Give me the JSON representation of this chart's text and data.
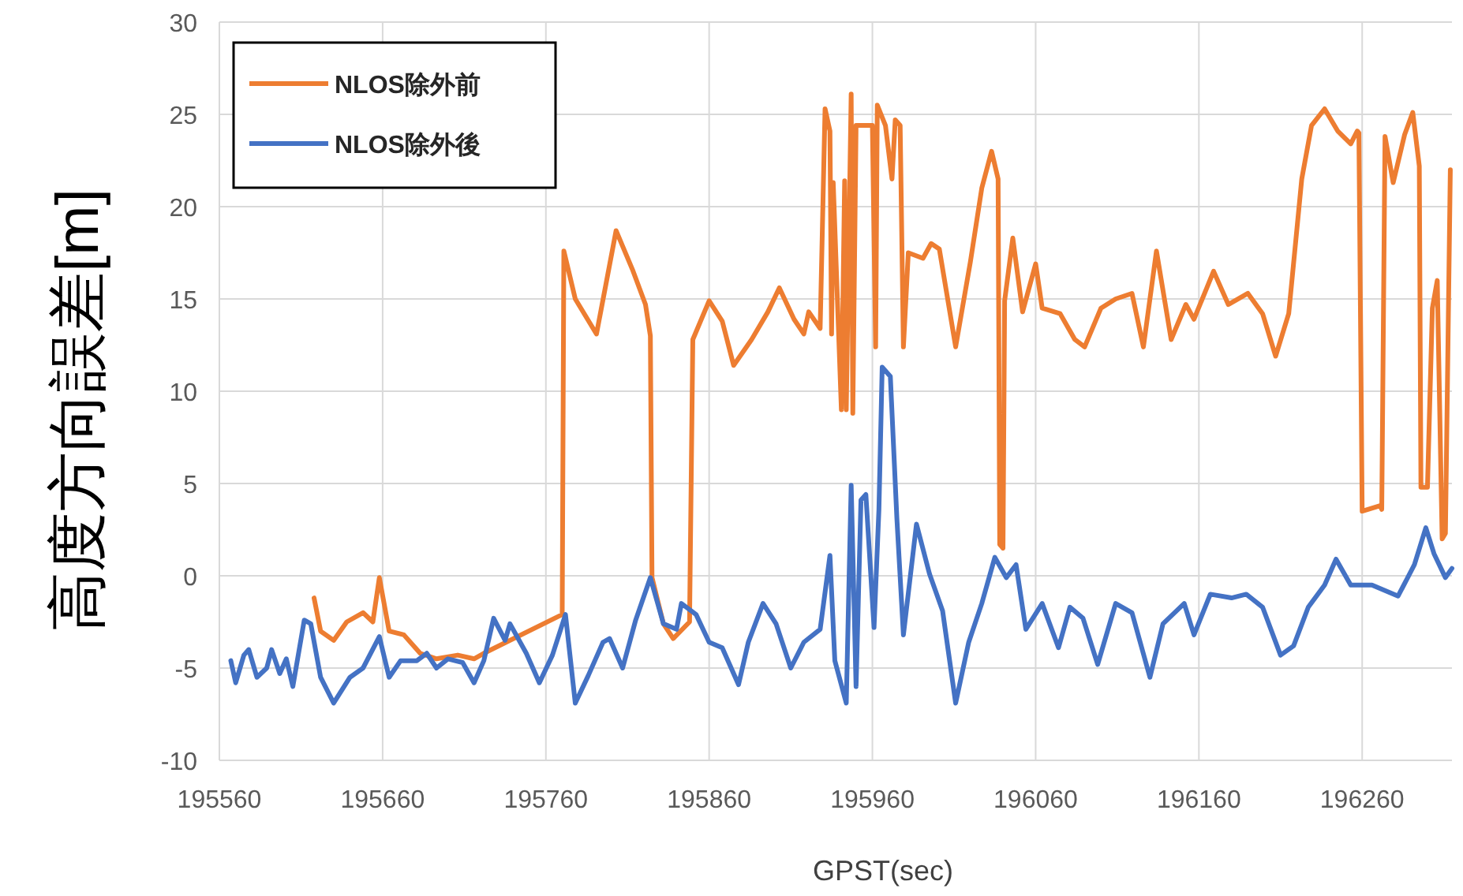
{
  "chart_data": {
    "type": "line",
    "xlabel": "GPST(sec)",
    "ylabel": "高度方向誤差[m]",
    "xlim": [
      195560,
      196315
    ],
    "ylim": [
      -10,
      30
    ],
    "xticks": [
      195560,
      195660,
      195760,
      195860,
      195960,
      196060,
      196160,
      196260
    ],
    "yticks": [
      -10,
      -5,
      0,
      5,
      10,
      15,
      20,
      25,
      30
    ],
    "grid": true,
    "legend": "top left",
    "line_style": "solid",
    "marker": "none",
    "series": [
      {
        "name": "NLOS除外前",
        "color": "#ed7d31",
        "x": [
          195618,
          195622,
          195630,
          195638,
          195648,
          195654,
          195658,
          195664,
          195673,
          195683,
          195693,
          195706,
          195716,
          195722,
          195770,
          195771,
          195778,
          195791,
          195803,
          195813,
          195821,
          195824,
          195825,
          195832,
          195838,
          195848,
          195850,
          195860,
          195868,
          195875,
          195886,
          195896,
          195903,
          195912,
          195918,
          195921,
          195928,
          195931,
          195934,
          195935,
          195936,
          195941,
          195943,
          195944,
          195947,
          195948,
          195950,
          195960,
          195962,
          195963,
          195968,
          195972,
          195974,
          195977,
          195979,
          195982,
          195991,
          195996,
          196001,
          196011,
          196020,
          196027,
          196033,
          196037,
          196038,
          196040,
          196041,
          196046,
          196052,
          196060,
          196064,
          196075,
          196084,
          196090,
          196100,
          196109,
          196119,
          196126,
          196134,
          196143,
          196152,
          196157,
          196169,
          196178,
          196190,
          196199,
          196207,
          196215,
          196223,
          196229,
          196237,
          196245,
          196253,
          196257,
          196258,
          196260,
          196271,
          196272,
          196274,
          196279,
          196286,
          196291,
          196295,
          196296,
          196300,
          196303,
          196306,
          196309,
          196311,
          196314
        ],
        "values": [
          -1.2,
          -3,
          -3.5,
          -2.5,
          -2,
          -2.5,
          -0.1,
          -3,
          -3.2,
          -4.2,
          -4.5,
          -4.3,
          -4.5,
          -4.2,
          -2.1,
          17.6,
          15,
          13.1,
          18.7,
          16.6,
          14.7,
          13,
          -0.1,
          -2.6,
          -3.4,
          -2.5,
          12.8,
          14.9,
          13.8,
          11.4,
          12.8,
          14.3,
          15.6,
          13.9,
          13.1,
          14.3,
          13.4,
          25.3,
          24.1,
          13.1,
          21.3,
          9,
          21.4,
          9,
          26.1,
          8.8,
          24.4,
          24.4,
          12.4,
          25.5,
          24.4,
          21.5,
          24.7,
          24.4,
          12.4,
          17.5,
          17.2,
          18,
          17.7,
          12.4,
          17,
          21,
          23,
          21.5,
          1.7,
          1.5,
          14.9,
          18.3,
          14.3,
          16.9,
          14.5,
          14.2,
          12.8,
          12.4,
          14.5,
          15,
          15.3,
          12.4,
          17.6,
          12.8,
          14.7,
          13.9,
          16.5,
          14.7,
          15.3,
          14.2,
          11.9,
          14.2,
          21.5,
          24.4,
          25.3,
          24.1,
          23.4,
          24.1,
          24,
          3.5,
          3.8,
          3.6,
          23.8,
          21.3,
          23.9,
          25.1,
          22.2,
          4.8,
          4.8,
          14.5,
          16,
          2,
          2.3,
          22
        ]
      },
      {
        "name": "NLOS除外後",
        "color": "#4472c4",
        "x": [
          195567,
          195570,
          195575,
          195578,
          195583,
          195589,
          195592,
          195597,
          195601,
          195605,
          195612,
          195616,
          195622,
          195630,
          195640,
          195648,
          195658,
          195664,
          195671,
          195681,
          195687,
          195693,
          195700,
          195709,
          195716,
          195722,
          195728,
          195735,
          195738,
          195748,
          195756,
          195764,
          195772,
          195778,
          195786,
          195795,
          195799,
          195807,
          195815,
          195824,
          195832,
          195840,
          195843,
          195852,
          195860,
          195868,
          195878,
          195884,
          195893,
          195901,
          195910,
          195918,
          195928,
          195934,
          195937,
          195944,
          195947,
          195950,
          195953,
          195956,
          195961,
          195964,
          195966,
          195971,
          195975,
          195979,
          195987,
          195995,
          196003,
          196011,
          196019,
          196027,
          196035,
          196042,
          196048,
          196054,
          196064,
          196074,
          196081,
          196089,
          196098,
          196109,
          196119,
          196130,
          196138,
          196151,
          196157,
          196167,
          196180,
          196189,
          196199,
          196210,
          196218,
          196227,
          196237,
          196244,
          196253,
          196266,
          196282,
          196292,
          196299,
          196304,
          196311,
          196315
        ],
        "values": [
          -4.6,
          -5.8,
          -4.3,
          -4,
          -5.5,
          -5,
          -4,
          -5.3,
          -4.5,
          -6,
          -2.4,
          -2.6,
          -5.5,
          -6.9,
          -5.5,
          -5,
          -3.3,
          -5.5,
          -4.6,
          -4.6,
          -4.2,
          -5,
          -4.5,
          -4.7,
          -5.8,
          -4.6,
          -2.3,
          -3.5,
          -2.6,
          -4.2,
          -5.8,
          -4.3,
          -2.1,
          -6.9,
          -5.4,
          -3.6,
          -3.4,
          -5,
          -2.4,
          -0.1,
          -2.6,
          -2.9,
          -1.5,
          -2.1,
          -3.6,
          -3.9,
          -5.9,
          -3.6,
          -1.5,
          -2.6,
          -5,
          -3.6,
          -2.9,
          1.1,
          -4.6,
          -6.9,
          4.9,
          -6,
          4.1,
          4.4,
          -2.8,
          3.6,
          11.3,
          10.8,
          3.1,
          -3.2,
          2.8,
          0.1,
          -1.9,
          -6.9,
          -3.6,
          -1.5,
          1,
          -0.1,
          0.6,
          -2.9,
          -1.5,
          -3.9,
          -1.7,
          -2.3,
          -4.8,
          -1.5,
          -2,
          -5.5,
          -2.6,
          -1.5,
          -3.2,
          -1,
          -1.2,
          -1,
          -1.7,
          -4.3,
          -3.8,
          -1.7,
          -0.5,
          0.9,
          -0.5,
          -0.5,
          -1.1,
          0.6,
          2.6,
          1.2,
          -0.1,
          0.4
        ]
      }
    ]
  }
}
